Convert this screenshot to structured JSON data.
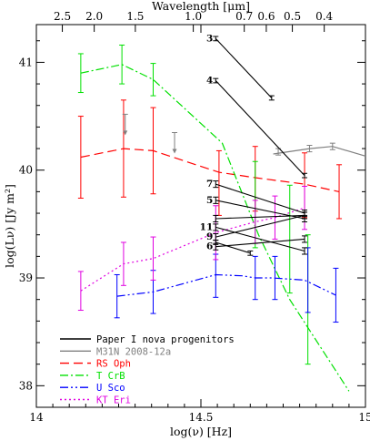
{
  "chart_data": {
    "type": "line",
    "xlabel": "log(ν) [Hz]",
    "ylabel": "log(Lν) [Jy m²]",
    "top_axis_label": "Wavelength [μm]",
    "xlim": [
      14.0,
      15.0
    ],
    "ylim": [
      37.8,
      41.35
    ],
    "x_ticks": [
      14,
      14.5,
      15
    ],
    "x_tick_labels": [
      "14",
      "14.5",
      "15"
    ],
    "y_ticks": [
      38,
      39,
      40,
      41
    ],
    "y_tick_labels": [
      "38",
      "39",
      "40",
      "41"
    ],
    "top_ticks": [
      2.5,
      2.0,
      1.5,
      1.0,
      0.7,
      0.6,
      0.5,
      0.4
    ],
    "top_tick_labels": [
      "2.5",
      "2.0",
      "1.5",
      "1.0",
      "0.7",
      "0.6",
      "0.5",
      "0.4"
    ],
    "legend": [
      {
        "label": "Paper I nova progenitors",
        "color": "#000000",
        "dash": "solid"
      },
      {
        "label": "M31N 2008-12a",
        "color": "#808080",
        "dash": "solid"
      },
      {
        "label": "RS Oph",
        "color": "#ff0000",
        "dash": "dashed"
      },
      {
        "label": "T CrB",
        "color": "#00e000",
        "dash": "dashdot"
      },
      {
        "label": "U Sco",
        "color": "#0000ff",
        "dash": "dashdotdot"
      },
      {
        "label": "KT Eri",
        "color": "#e000e0",
        "dash": "dotted"
      }
    ],
    "series": [
      {
        "name": "RS Oph",
        "color": "#ff0000",
        "x": [
          14.135,
          14.265,
          14.355,
          14.555,
          14.665,
          14.815,
          14.92
        ],
        "y": [
          40.12,
          40.2,
          40.18,
          39.98,
          39.93,
          39.87,
          39.8
        ],
        "err": [
          0.38,
          0.45,
          0.4,
          0.35,
          0.3,
          0.3,
          0.25
        ],
        "errx": [
          14.135,
          14.265,
          14.355,
          14.555,
          14.665,
          14.815,
          14.92
        ],
        "erry": [
          40.12,
          40.2,
          40.18,
          39.88,
          39.92,
          39.86,
          39.8
        ],
        "errs": [
          0.38,
          0.45,
          0.4,
          0.3,
          0.3,
          0.3,
          0.25
        ]
      },
      {
        "name": "T CrB",
        "color": "#00e000",
        "x": [
          14.135,
          14.26,
          14.355,
          14.565,
          14.675,
          14.77,
          14.95
        ],
        "y": [
          40.9,
          40.98,
          40.84,
          40.25,
          39.4,
          38.8,
          37.95
        ],
        "errx": [
          14.135,
          14.26,
          14.355,
          14.665,
          14.77,
          14.825
        ],
        "erry": [
          40.9,
          40.98,
          40.84,
          39.68,
          39.36,
          38.8
        ],
        "errs": [
          0.18,
          0.18,
          0.15,
          0.4,
          0.5,
          0.6
        ]
      },
      {
        "name": "U Sco",
        "color": "#0000ff",
        "x": [
          14.245,
          14.355,
          14.545,
          14.625,
          14.665,
          14.715,
          14.815,
          14.91
        ],
        "y": [
          38.83,
          38.87,
          39.03,
          39.02,
          39.0,
          39.0,
          38.98,
          38.84
        ],
        "errx": [
          14.245,
          14.355,
          14.545,
          14.665,
          14.725,
          14.825,
          14.91
        ],
        "erry": [
          38.83,
          38.87,
          39.02,
          39.0,
          39.0,
          38.98,
          38.84
        ],
        "errs": [
          0.2,
          0.2,
          0.2,
          0.2,
          0.2,
          0.3,
          0.25
        ]
      },
      {
        "name": "KT Eri",
        "color": "#e000e0",
        "x": [
          14.135,
          14.265,
          14.355,
          14.545,
          14.665,
          14.725,
          14.815
        ],
        "y": [
          38.88,
          39.13,
          39.18,
          39.42,
          39.52,
          39.56,
          39.65
        ],
        "errx": [
          14.135,
          14.265,
          14.355,
          14.545,
          14.665,
          14.725,
          14.815
        ],
        "erry": [
          38.88,
          39.13,
          39.18,
          39.42,
          39.52,
          39.56,
          39.65
        ],
        "errs": [
          0.18,
          0.2,
          0.2,
          0.25,
          0.2,
          0.2,
          0.2
        ]
      },
      {
        "name": "M31N 2008-12a",
        "color": "#808080",
        "x": [
          14.72,
          14.83,
          14.9,
          15.0
        ],
        "y": [
          40.15,
          40.2,
          40.22,
          40.13
        ],
        "errx": [
          14.735,
          14.83,
          14.9
        ],
        "erry": [
          40.17,
          40.2,
          40.22
        ],
        "errs": [
          0.03,
          0.03,
          0.03
        ],
        "upper_limits": [
          {
            "x": 14.27,
            "y": 40.4
          },
          {
            "x": 14.42,
            "y": 40.23
          }
        ]
      }
    ],
    "nova_progenitors": [
      {
        "label": "3",
        "x": [
          14.545,
          14.715
        ],
        "y": [
          41.22,
          40.67
        ],
        "err": [
          0.02,
          0.02
        ]
      },
      {
        "label": "4",
        "x": [
          14.545,
          14.815
        ],
        "y": [
          40.83,
          39.95
        ],
        "err": [
          0.02,
          0.02
        ]
      },
      {
        "label": "7",
        "x": [
          14.545,
          14.815
        ],
        "y": [
          39.87,
          39.6
        ],
        "err": [
          0.03,
          0.03
        ]
      },
      {
        "label": "5",
        "x": [
          14.545,
          14.815
        ],
        "y": [
          39.72,
          39.55
        ],
        "err": [
          0.03,
          0.03
        ]
      },
      {
        "label": "11",
        "x": [
          14.545,
          14.815
        ],
        "y": [
          39.47,
          39.25
        ],
        "err": [
          0.03,
          0.03
        ]
      },
      {
        "label": "9",
        "x": [
          14.545,
          14.815
        ],
        "y": [
          39.38,
          39.58
        ],
        "err": [
          0.03,
          0.03
        ]
      },
      {
        "label": "6",
        "x": [
          14.545,
          14.815
        ],
        "y": [
          39.29,
          39.36
        ],
        "err": [
          0.03,
          0.03
        ]
      },
      {
        "label": "",
        "x": [
          14.545,
          14.815
        ],
        "y": [
          39.55,
          39.58
        ],
        "err": [
          0.03,
          0.03
        ]
      },
      {
        "label": "",
        "x": [
          14.545,
          14.65
        ],
        "y": [
          39.33,
          39.23
        ],
        "err": [
          0.02,
          0.02
        ]
      }
    ]
  }
}
